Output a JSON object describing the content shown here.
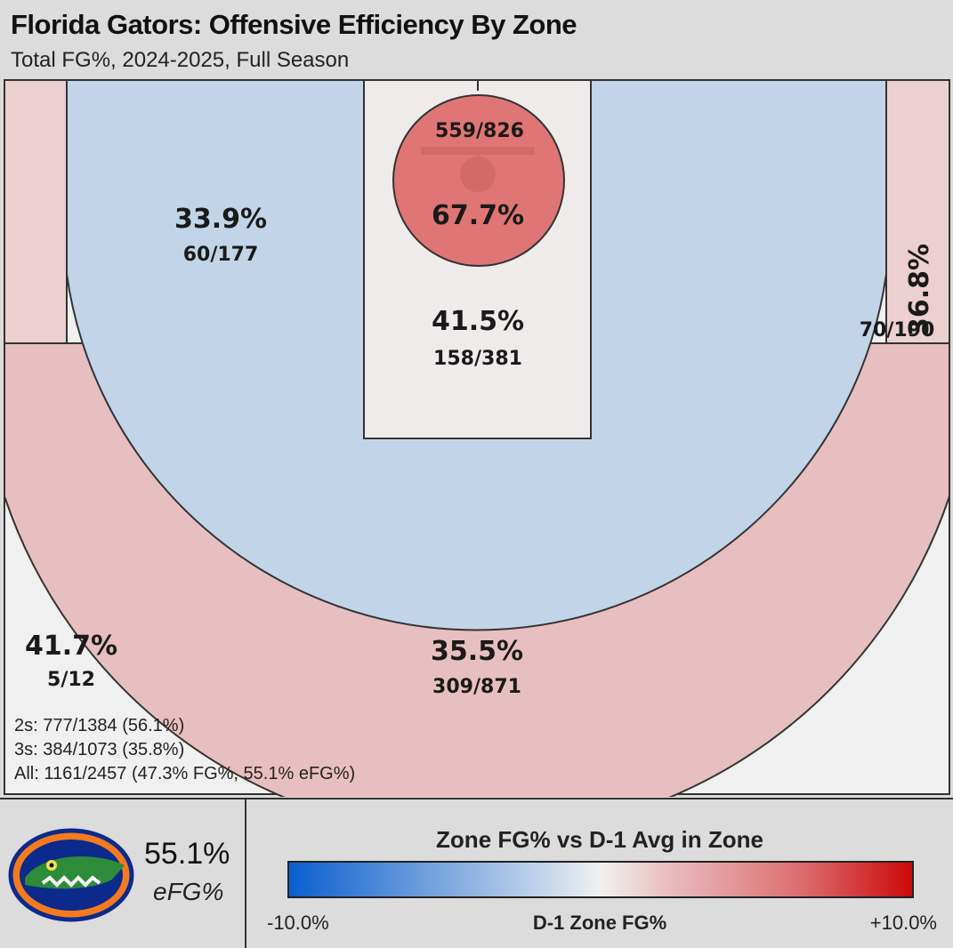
{
  "header": {
    "title": "Florida Gators: Offensive Efficiency By Zone",
    "subtitle": "Total FG%, 2024-2025, Full Season"
  },
  "chart_data": {
    "type": "heatmap",
    "zones": [
      {
        "id": "left_corner_three",
        "fg_pct": "41.7%",
        "made_attempts": "5/12",
        "made": 5,
        "attempts": 12,
        "color": "#f1f0f0"
      },
      {
        "id": "left_midrange",
        "fg_pct": "33.9%",
        "made_attempts": "60/177",
        "made": 60,
        "attempts": 177,
        "color": "#c2d5e8"
      },
      {
        "id": "rim",
        "fg_pct": "67.7%",
        "made_attempts": "559/826",
        "made": 559,
        "attempts": 826,
        "color": "#e07575"
      },
      {
        "id": "paint",
        "fg_pct": "41.5%",
        "made_attempts": "158/381",
        "made": 158,
        "attempts": 381,
        "color": "#efebeb"
      },
      {
        "id": "right_wing_three",
        "fg_pct": "36.8%",
        "made_attempts": "70/190",
        "made": 70,
        "attempts": 190,
        "color": "#ecd0d1"
      },
      {
        "id": "top_three",
        "fg_pct": "35.5%",
        "made_attempts": "309/871",
        "made": 309,
        "attempts": 871,
        "color": "#e8bfc0"
      }
    ],
    "totals": [
      "2s: 777/1384 (56.1%)",
      "3s: 384/1073 (35.8%)",
      "All: 1161/2457 (47.3% FG%, 55.1% eFG%)"
    ],
    "efg": "55.1%",
    "efg_label": "eFG%",
    "legend": {
      "title": "Zone FG% vs D-1 Avg in Zone",
      "min_label": "-10.0%",
      "max_label": "+10.0%",
      "center_label": "D-1 Zone FG%",
      "min_color": "#0a5fd0",
      "mid_color": "#f1f0f0",
      "max_color": "#cc0a0a"
    }
  }
}
